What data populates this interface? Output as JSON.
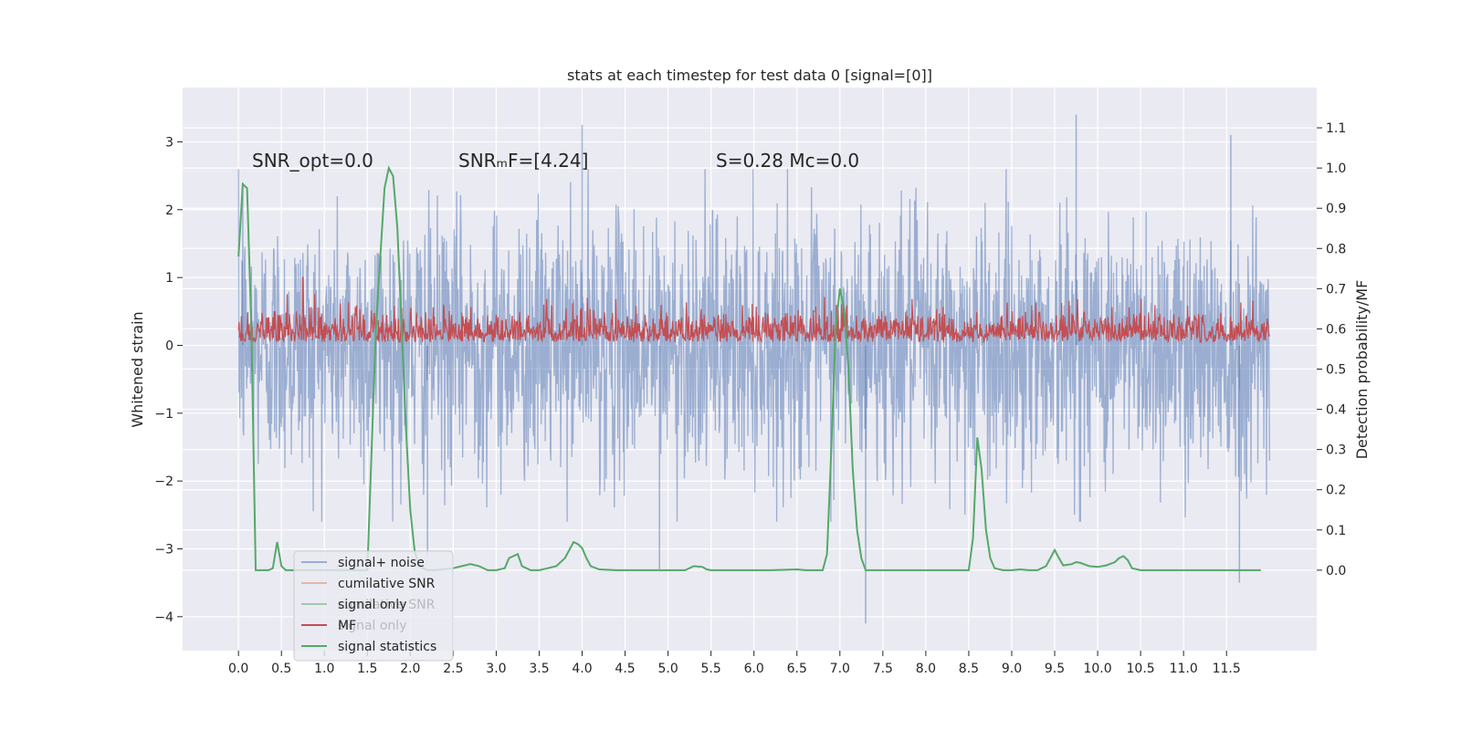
{
  "chart_data": {
    "type": "line",
    "title": "stats at each timestep for test data 0 [signal=[0]]",
    "xlabel": "",
    "ylabel_left": "Whitened strain",
    "ylabel_right": "Detection probability/MF",
    "xlim": [
      -0.65,
      12.55
    ],
    "ylim_left": [
      -4.5,
      3.8
    ],
    "ylim_right": [
      -0.2,
      1.2
    ],
    "x_ticks": [
      0.0,
      0.5,
      1.0,
      1.5,
      2.0,
      2.5,
      3.0,
      3.5,
      4.0,
      4.5,
      5.0,
      5.5,
      6.0,
      6.5,
      7.0,
      7.5,
      8.0,
      8.5,
      9.0,
      9.5,
      10.0,
      10.5,
      11.0,
      11.5
    ],
    "x_tick_labels": [
      "0.0",
      "0.5",
      "1.0",
      "1.5",
      "2.0",
      "2.5",
      "3.0",
      "3.5",
      "4.0",
      "4.5",
      "5.0",
      "5.5",
      "6.0",
      "6.5",
      "7.0",
      "7.5",
      "8.0",
      "8.5",
      "9.0",
      "9.5",
      "10.0",
      "10.5",
      "11.0",
      "11.5"
    ],
    "y_left_ticks": [
      3,
      2,
      1,
      0,
      -1,
      -2,
      -3,
      -4
    ],
    "y_left_tick_labels": [
      "3",
      "2",
      "1",
      "0",
      "−1",
      "−2",
      "−3",
      "−4"
    ],
    "y_right_ticks": [
      0.0,
      0.1,
      0.2,
      0.3,
      0.4,
      0.5,
      0.6,
      0.7,
      0.8,
      0.9,
      1.0,
      1.1
    ],
    "y_right_tick_labels": [
      "0.0",
      "0.1",
      "0.2",
      "0.3",
      "0.4",
      "0.5",
      "0.6",
      "0.7",
      "0.8",
      "0.9",
      "1.0",
      "1.1"
    ],
    "annotations": [
      {
        "name": "snr-opt-annotation",
        "text": "SNR_opt=0.0",
        "x": 0.2,
        "y": 2.6
      },
      {
        "name": "snr-mf-annotation",
        "text": "SNRₘF=[4.24]",
        "x": 2.6,
        "y": 2.6
      },
      {
        "name": "s-mc-annotation",
        "text": "S=0.28   Mc=0.0",
        "x": 5.6,
        "y": 2.6
      }
    ],
    "legend": {
      "location": "lower-left",
      "entries": [
        {
          "label": "signal+ noise",
          "color": "#4c72b0",
          "alpha": 0.5
        },
        {
          "label": "cumilative SNR",
          "color": "#dd8452",
          "alpha": 0.5
        },
        {
          "label": "signal only",
          "color": "#55a868",
          "alpha": 0.5
        },
        {
          "label": "MF",
          "color": "#c44e52",
          "alpha": 1.0
        },
        {
          "label": "signal statistics",
          "color": "#55a868",
          "alpha": 1.0
        }
      ],
      "ghost_labels": [
        "cumilative SNR",
        "signal only"
      ]
    },
    "series": [
      {
        "name": "signal+ noise",
        "axis": "left",
        "color": "#4c72b0",
        "alpha": 0.5,
        "x_range": [
          0.0,
          12.0
        ],
        "typical_range": [
          -2.0,
          2.0
        ],
        "peaks_max": [
          {
            "x": 0.05,
            "y": 2.4
          },
          {
            "x": 4.0,
            "y": 3.25
          },
          {
            "x": 9.75,
            "y": 3.4
          },
          {
            "x": 11.55,
            "y": 3.1
          }
        ],
        "peaks_min": [
          {
            "x": 4.9,
            "y": -3.3
          },
          {
            "x": 7.3,
            "y": -4.1
          },
          {
            "x": 11.65,
            "y": -3.5
          },
          {
            "x": 2.2,
            "y": -3.1
          }
        ]
      },
      {
        "name": "MF",
        "axis": "left",
        "color": "#c44e52",
        "alpha": 1.0,
        "x_range": [
          0.0,
          12.0
        ],
        "typical_range": [
          0.0,
          0.8
        ],
        "peak": {
          "x": 0.75,
          "y": 1.0
        }
      },
      {
        "name": "signal statistics",
        "axis": "right",
        "color": "#55a868",
        "x": [
          0.0,
          0.05,
          0.1,
          0.15,
          0.2,
          0.3,
          0.35,
          0.4,
          0.45,
          0.5,
          0.55,
          0.6,
          0.7,
          1.5,
          1.6,
          1.7,
          1.75,
          1.8,
          1.85,
          1.9,
          1.95,
          2.0,
          2.05,
          2.1,
          2.2,
          2.3,
          2.5,
          2.6,
          2.7,
          2.8,
          2.9,
          3.0,
          3.1,
          3.15,
          3.2,
          3.25,
          3.3,
          3.4,
          3.5,
          3.6,
          3.7,
          3.8,
          3.9,
          3.95,
          4.0,
          4.05,
          4.1,
          4.2,
          4.4,
          4.6,
          5.0,
          5.2,
          5.3,
          5.4,
          5.45,
          5.5,
          5.6,
          5.8,
          6.2,
          6.5,
          6.6,
          6.8,
          6.85,
          6.9,
          6.95,
          7.0,
          7.05,
          7.1,
          7.15,
          7.2,
          7.25,
          7.3,
          7.4,
          7.6,
          8.0,
          8.4,
          8.5,
          8.55,
          8.6,
          8.65,
          8.7,
          8.75,
          8.8,
          8.9,
          9.0,
          9.1,
          9.2,
          9.3,
          9.4,
          9.45,
          9.5,
          9.55,
          9.6,
          9.7,
          9.75,
          9.8,
          9.9,
          10.0,
          10.1,
          10.2,
          10.25,
          10.3,
          10.35,
          10.4,
          10.5,
          10.6,
          10.8,
          11.0,
          11.5,
          11.9
        ],
        "values": [
          0.78,
          0.96,
          0.95,
          0.6,
          0.0,
          0.0,
          0.0,
          0.005,
          0.07,
          0.01,
          0.0,
          0.0,
          0.0,
          0.0,
          0.6,
          0.95,
          1.0,
          0.98,
          0.85,
          0.6,
          0.35,
          0.15,
          0.05,
          0.01,
          0.0,
          0.0,
          0.005,
          0.01,
          0.015,
          0.01,
          0.0,
          0.0,
          0.005,
          0.03,
          0.035,
          0.04,
          0.01,
          0.0,
          0.0,
          0.005,
          0.01,
          0.03,
          0.07,
          0.065,
          0.055,
          0.03,
          0.01,
          0.002,
          0.0,
          0.0,
          0.0,
          0.0,
          0.01,
          0.008,
          0.002,
          0.0,
          0.0,
          0.0,
          0.0,
          0.002,
          0.0,
          0.0,
          0.04,
          0.3,
          0.6,
          0.7,
          0.65,
          0.5,
          0.25,
          0.1,
          0.03,
          0.0,
          0.0,
          0.0,
          0.0,
          0.0,
          0.0,
          0.08,
          0.33,
          0.25,
          0.1,
          0.03,
          0.005,
          0.0,
          0.0,
          0.002,
          0.0,
          0.0,
          0.01,
          0.03,
          0.05,
          0.03,
          0.012,
          0.015,
          0.02,
          0.018,
          0.01,
          0.008,
          0.012,
          0.02,
          0.03,
          0.035,
          0.025,
          0.005,
          0.0,
          0.0,
          0.0,
          0.0,
          0.0,
          0.0
        ]
      }
    ]
  }
}
